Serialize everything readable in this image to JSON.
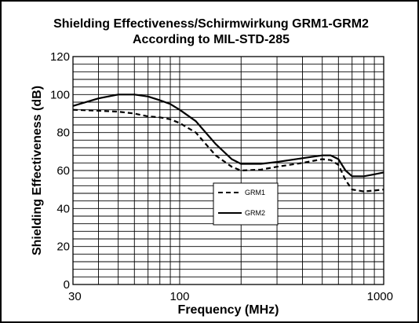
{
  "chart_data": {
    "type": "line",
    "title": "Shielding Effectiveness/Schirmwirkung GRM1-GRM2",
    "subtitle": "According to MIL-STD-285",
    "xlabel": "Frequency (MHz)",
    "ylabel": "Shielding Effectiveness (dB)",
    "xscale": "log",
    "xlim": [
      30,
      1000
    ],
    "ylim": [
      0,
      120
    ],
    "xticks": [
      "30",
      "100",
      "1000"
    ],
    "yticks": [
      "0",
      "20",
      "40",
      "60",
      "80",
      "100",
      "120"
    ],
    "grid": true,
    "legend_position": "center",
    "series": [
      {
        "name": "GRM1",
        "style": "dashed",
        "x": [
          30,
          40,
          50,
          60,
          70,
          80,
          90,
          100,
          120,
          150,
          180,
          200,
          250,
          300,
          400,
          500,
          550,
          600,
          650,
          700,
          800,
          900,
          1000
        ],
        "y": [
          92,
          91.5,
          91,
          90,
          88.5,
          88,
          87,
          85,
          80,
          68,
          62,
          60,
          60.5,
          62,
          64,
          66,
          65.5,
          63,
          55,
          50,
          49,
          49.5,
          50
        ]
      },
      {
        "name": "GRM2",
        "style": "solid",
        "x": [
          30,
          40,
          50,
          60,
          70,
          80,
          90,
          100,
          120,
          150,
          180,
          200,
          250,
          300,
          400,
          500,
          550,
          600,
          650,
          700,
          800,
          900,
          1000
        ],
        "y": [
          94,
          98,
          100,
          100,
          99,
          97,
          95,
          92,
          86,
          74,
          66,
          63.5,
          63.5,
          64.5,
          66.5,
          68,
          68,
          66,
          60,
          57,
          57,
          58,
          59
        ]
      }
    ]
  }
}
